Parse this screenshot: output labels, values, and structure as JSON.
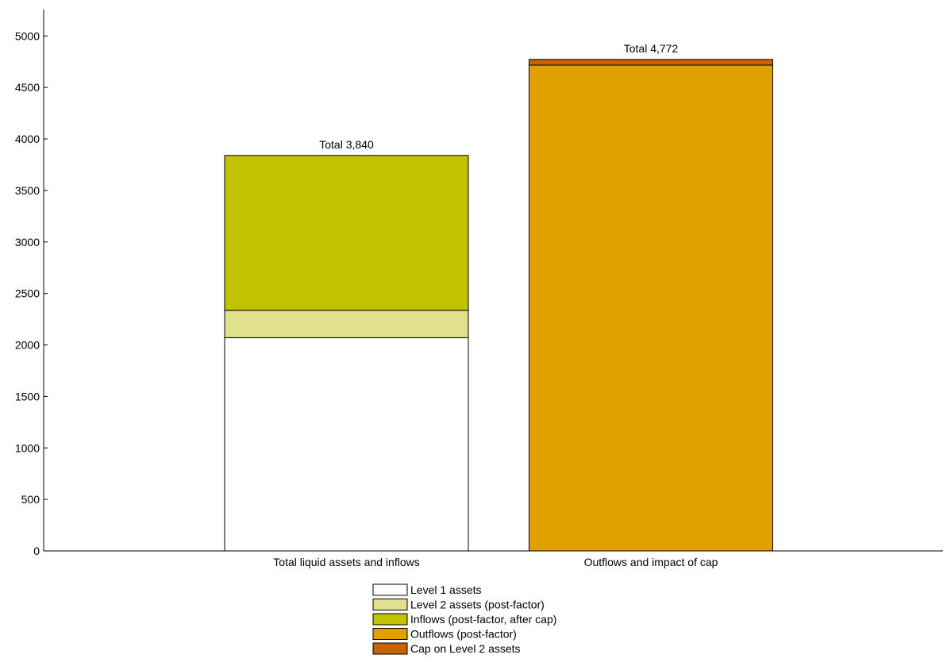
{
  "chart_data": {
    "type": "bar",
    "stacked": true,
    "categories": [
      "Total liquid assets and inflows",
      "Outflows and impact of cap"
    ],
    "series": [
      {
        "name": "Level 1 assets",
        "color": "#ffffff",
        "values": [
          2070,
          0
        ]
      },
      {
        "name": "Level 2 assets (post-factor)",
        "color": "#e1e08c",
        "values": [
          265,
          0
        ]
      },
      {
        "name": "Inflows (post-factor, after cap)",
        "color": "#c2c200",
        "values": [
          1505,
          0
        ]
      },
      {
        "name": "Outflows (post-factor)",
        "color": "#e0a000",
        "values": [
          0,
          4717
        ]
      },
      {
        "name": "Cap on Level 2 assets",
        "color": "#c86400",
        "values": [
          0,
          55
        ]
      }
    ],
    "totals": [
      {
        "label": "Total 3,840",
        "value": 3840
      },
      {
        "label": "Total 4,772",
        "value": 4772
      }
    ],
    "yticks": [
      0,
      500,
      1000,
      1500,
      2000,
      2500,
      3000,
      3500,
      4000,
      4500,
      5000
    ],
    "ylim": [
      0,
      5250
    ],
    "grid": false,
    "legend_position": "bottom"
  }
}
